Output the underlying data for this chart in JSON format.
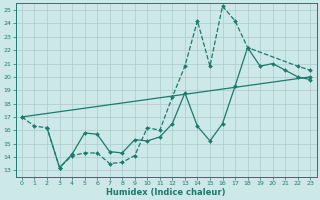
{
  "xlabel": "Humidex (Indice chaleur)",
  "xlim": [
    -0.5,
    23.5
  ],
  "ylim": [
    12.5,
    25.5
  ],
  "xticks": [
    0,
    1,
    2,
    3,
    4,
    5,
    6,
    7,
    8,
    9,
    10,
    11,
    12,
    13,
    14,
    15,
    16,
    17,
    18,
    19,
    20,
    21,
    22,
    23
  ],
  "yticks": [
    13,
    14,
    15,
    16,
    17,
    18,
    19,
    20,
    21,
    22,
    23,
    24,
    25
  ],
  "bg_color": "#cce8e8",
  "line_color": "#1a7a6e",
  "grid_color": "#aacccc",
  "curve1_x": [
    0,
    1,
    2,
    3,
    4,
    5,
    6,
    7,
    8,
    9,
    10,
    11,
    12,
    13,
    14,
    15,
    16,
    17,
    18,
    22,
    23
  ],
  "curve1_y": [
    17.0,
    16.3,
    16.2,
    13.2,
    14.1,
    14.3,
    14.3,
    13.5,
    13.6,
    14.1,
    16.2,
    16.0,
    18.5,
    20.8,
    24.2,
    20.8,
    25.3,
    24.2,
    22.2,
    20.8,
    20.5
  ],
  "curve2_x": [
    0,
    23
  ],
  "curve2_y": [
    17.0,
    20.0
  ],
  "curve3_x": [
    2,
    3,
    4,
    5,
    6,
    7,
    8,
    9,
    10,
    11,
    12,
    13,
    14,
    15,
    16,
    17,
    18,
    19,
    20,
    21,
    22,
    23
  ],
  "curve3_y": [
    16.2,
    13.2,
    14.2,
    15.8,
    15.7,
    14.4,
    14.3,
    15.3,
    15.2,
    15.5,
    16.5,
    18.8,
    16.3,
    15.2,
    16.5,
    19.3,
    22.2,
    20.8,
    21.0,
    20.5,
    20.0,
    19.8
  ],
  "lw": 0.9,
  "ms": 2.0
}
